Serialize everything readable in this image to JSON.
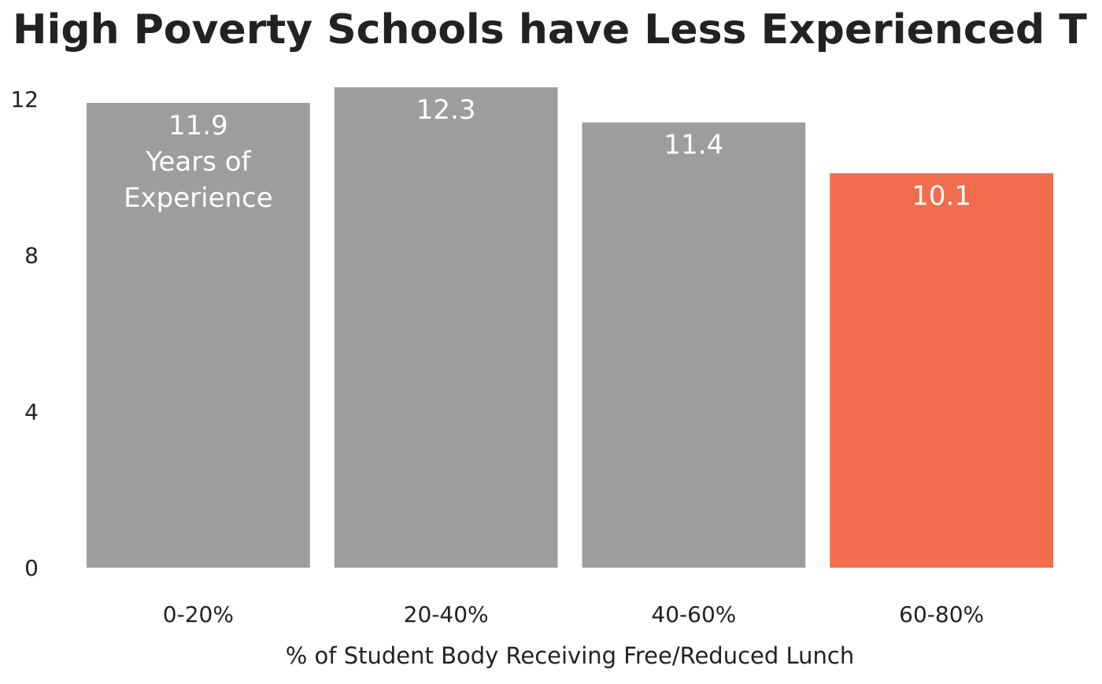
{
  "chart_data": {
    "type": "bar",
    "title": "High Poverty Schools have Less Experienced T",
    "xlabel": "% of Student Body Receiving Free/Reduced Lunch",
    "ylabel": "",
    "categories": [
      "0-20%",
      "20-40%",
      "40-60%",
      "60-80%"
    ],
    "values": [
      11.9,
      12.3,
      11.4,
      10.1
    ],
    "value_labels": [
      "11.9",
      "12.3",
      "11.4",
      "10.1"
    ],
    "first_bar_extra_label": [
      "Years of",
      "Experience"
    ],
    "ylim": [
      0,
      12.3
    ],
    "yticks": [
      0,
      4,
      8,
      12
    ],
    "grid": false,
    "legend": "none",
    "colors": {
      "default_bar": "#9d9d9b",
      "highlight_bar": "#f26d4d",
      "highlight_index": 3,
      "text": "#222222",
      "label": "#ffffff"
    }
  }
}
